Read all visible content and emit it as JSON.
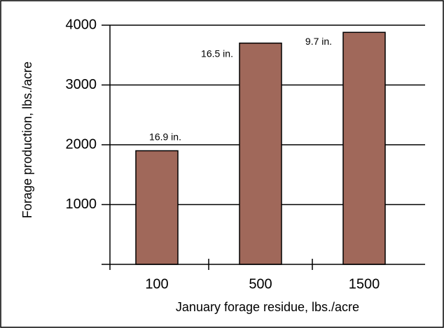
{
  "chart_data": {
    "type": "bar",
    "x_label": "January forage residue, lbs./acre",
    "y_label": "Forage production, lbs./acre",
    "categories": [
      "100",
      "500",
      "1500"
    ],
    "values": [
      1900,
      3700,
      3880
    ],
    "annotations": [
      "16.9 in.",
      "16.5 in.",
      "9.7 in."
    ],
    "color": "#a0685a",
    "ylim": [
      0,
      4000
    ],
    "yticks": [
      1000,
      2000,
      3000,
      4000
    ],
    "grid": true
  }
}
